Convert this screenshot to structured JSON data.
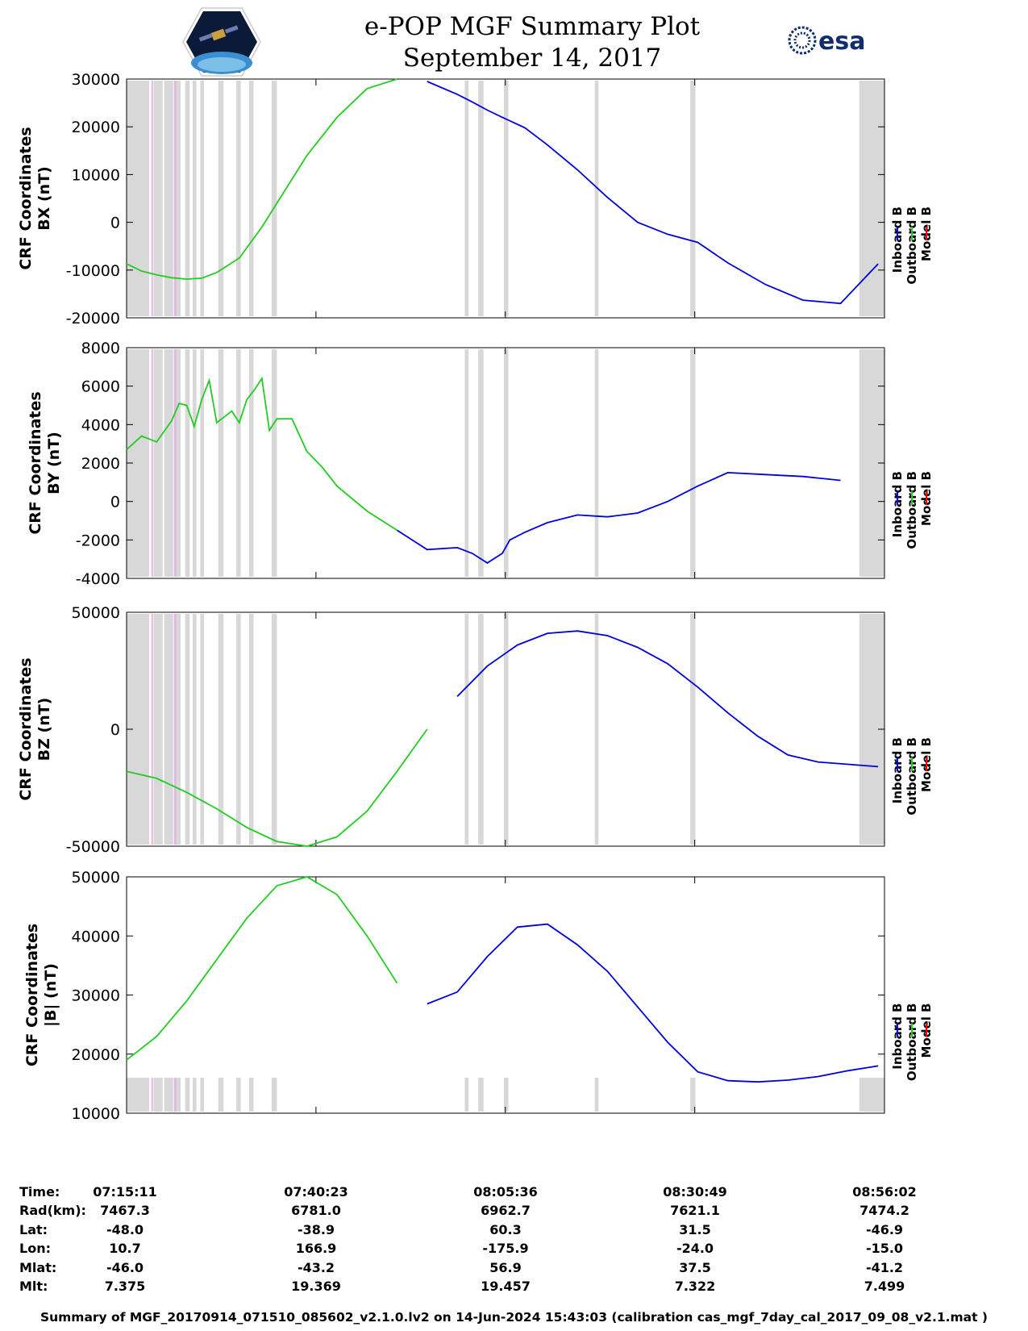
{
  "title": "e-POP MGF Summary Plot",
  "date": "September 14, 2017",
  "logos": {
    "left": "cassiope-satellite-logo",
    "right": "esa-logo",
    "right_text": "esa"
  },
  "legend": {
    "labels": [
      "Inboard B",
      "Outboard B",
      "Model B"
    ],
    "colors": [
      "#0000ee",
      "#22cc22",
      "#ee0000"
    ]
  },
  "colors": {
    "inboard": "#0000dd",
    "outboard": "#22cc22",
    "model": "#ee0000",
    "gap_gray": "#d8d8d8",
    "gap_pink": "#e2b6e2"
  },
  "chart_data": [
    {
      "type": "line",
      "title": "",
      "ylabel": [
        "CRF Coordinates",
        "BX (nT)"
      ],
      "ylim": [
        -20000,
        30000
      ],
      "yticks": [
        -20000,
        -10000,
        0,
        10000,
        20000,
        30000
      ],
      "x_minutes_from_start": [
        0,
        2,
        4,
        6,
        8,
        10,
        12,
        15,
        18,
        21,
        24,
        28,
        32,
        36,
        40,
        44,
        46,
        48,
        50,
        53,
        56,
        60,
        64,
        68,
        72,
        76,
        80,
        85,
        90,
        95,
        100
      ],
      "series": [
        {
          "name": "Outboard B",
          "segment": [
            0,
            38
          ],
          "values": [
            -8700,
            -10200,
            -11000,
            -11600,
            -11900,
            -11700,
            -10500,
            -7500,
            -1000,
            6500,
            14000,
            22000,
            28000,
            30000,
            29500,
            26800,
            25200,
            23500,
            22000,
            19800,
            16200,
            11000,
            5200,
            0,
            -2500,
            -4200,
            -8500,
            -13000,
            -16300,
            -17000,
            -16000
          ]
        },
        {
          "name": "Inboard B",
          "segment": [
            38,
            100
          ],
          "values": [
            -8700,
            -10200,
            -11000,
            -11600,
            -11900,
            -11700,
            -10500,
            -7500,
            -1000,
            6500,
            14000,
            22000,
            28000,
            30000,
            29500,
            26800,
            25200,
            23500,
            22000,
            19800,
            16200,
            11000,
            5200,
            0,
            -2500,
            -4200,
            -8500,
            -13000,
            -16300,
            -17000,
            -8700
          ]
        }
      ]
    },
    {
      "type": "line",
      "title": "",
      "ylabel": [
        "CRF Coordinates",
        "BY (nT)"
      ],
      "ylim": [
        -4000,
        8000
      ],
      "yticks": [
        -4000,
        -2000,
        0,
        2000,
        4000,
        6000,
        8000
      ],
      "x_minutes_from_start": [
        0,
        2,
        4,
        6,
        7,
        8,
        9,
        10,
        11,
        12,
        13,
        14,
        15,
        16,
        17,
        18,
        19,
        20,
        22,
        24,
        26,
        28,
        32,
        36,
        40,
        44,
        46,
        48,
        50,
        51,
        53,
        56,
        60,
        64,
        68,
        72,
        76,
        80,
        85,
        90,
        95,
        100
      ],
      "series": [
        {
          "name": "Outboard B",
          "segment": [
            0,
            36
          ],
          "values": [
            2700,
            3400,
            3100,
            4200,
            5100,
            5000,
            3900,
            5300,
            6300,
            4100,
            4400,
            4700,
            4100,
            5300,
            5800,
            6400,
            3700,
            4300,
            4300,
            2600,
            1800,
            800,
            -500,
            -1500,
            -2500,
            -2400,
            -2700,
            -3200,
            -2700,
            -2000,
            -1600,
            -1100,
            -700,
            -800,
            -600,
            0,
            800,
            1500,
            1400,
            1300,
            1000
          ]
        },
        {
          "name": "Inboard B",
          "segment": [
            36,
            100
          ],
          "values": [
            2700,
            3400,
            3100,
            4200,
            5100,
            5000,
            3900,
            5300,
            6300,
            4100,
            4400,
            4700,
            4100,
            5300,
            5800,
            6400,
            3700,
            4300,
            4300,
            2600,
            1800,
            800,
            -500,
            -1500,
            -2500,
            -2400,
            -2700,
            -3200,
            -2700,
            -2000,
            -1600,
            -1100,
            -700,
            -800,
            -600,
            0,
            800,
            1500,
            1400,
            1300,
            1100
          ]
        },
        {
          "name": "Model B",
          "segment": [
            0,
            100
          ],
          "note": "nearly coincident with measured field"
        }
      ]
    },
    {
      "type": "line",
      "title": "",
      "ylabel": [
        "CRF Coordinates",
        "BZ (nT)"
      ],
      "ylim": [
        -50000,
        50000
      ],
      "yticks": [
        -50000,
        0,
        50000
      ],
      "x_minutes_from_start": [
        0,
        4,
        8,
        12,
        16,
        20,
        24,
        28,
        32,
        36,
        40,
        44,
        48,
        52,
        56,
        60,
        64,
        68,
        72,
        76,
        80,
        84,
        88,
        92,
        96,
        100
      ],
      "series": [
        {
          "name": "Outboard B",
          "segment": [
            0,
            42
          ],
          "values": [
            -18000,
            -21000,
            -27000,
            -34000,
            -42000,
            -48000,
            -50000,
            -46000,
            -35000,
            -18000,
            0,
            14000,
            27000,
            36000,
            41000,
            42000,
            40000,
            35000,
            28000,
            18000,
            7000,
            -3000,
            -11000,
            -14000,
            -15000,
            -16000
          ]
        },
        {
          "name": "Inboard B",
          "segment": [
            42,
            100
          ],
          "values": [
            -18000,
            -21000,
            -27000,
            -34000,
            -42000,
            -48000,
            -50000,
            -46000,
            -35000,
            -18000,
            0,
            14000,
            27000,
            36000,
            41000,
            42000,
            40000,
            35000,
            28000,
            18000,
            7000,
            -3000,
            -11000,
            -14000,
            -15000,
            -16000
          ]
        }
      ]
    },
    {
      "type": "line",
      "title": "",
      "ylabel": [
        "CRF Coordinates",
        "|B| (nT)"
      ],
      "ylim": [
        10000,
        50000
      ],
      "yticks": [
        10000,
        20000,
        30000,
        40000,
        50000
      ],
      "x_minutes_from_start": [
        0,
        4,
        8,
        12,
        16,
        20,
        24,
        28,
        32,
        36,
        40,
        44,
        48,
        52,
        56,
        60,
        64,
        68,
        72,
        76,
        80,
        84,
        88,
        92,
        96,
        100
      ],
      "series": [
        {
          "name": "Outboard B",
          "segment": [
            0,
            39
          ],
          "values": [
            19000,
            23000,
            29000,
            36000,
            43000,
            48500,
            50000,
            47000,
            40000,
            32000,
            28500,
            30500,
            36500,
            41500,
            42000,
            38500,
            34000,
            28000,
            22000,
            17000,
            15500,
            15300,
            15600,
            16200,
            17200,
            18000
          ]
        },
        {
          "name": "Inboard B",
          "segment": [
            39,
            100
          ],
          "values": [
            19000,
            23000,
            29000,
            36000,
            43000,
            48500,
            50000,
            47000,
            40000,
            32000,
            28500,
            30500,
            36500,
            41500,
            42000,
            38500,
            34000,
            28000,
            22000,
            17000,
            15500,
            15300,
            15600,
            16200,
            17200,
            18000
          ]
        }
      ]
    }
  ],
  "x_axis": {
    "start": "07:15:11",
    "end": "08:56:02",
    "tick_positions_min": [
      0,
      25.2,
      50.4,
      75.6,
      100.85
    ]
  },
  "info_rows": [
    {
      "label": "Time:",
      "values": [
        "07:15:11",
        "07:40:23",
        "08:05:36",
        "08:30:49",
        "08:56:02"
      ]
    },
    {
      "label": "Rad(km):",
      "values": [
        "7467.3",
        "6781.0",
        "6962.7",
        "7621.1",
        "7474.2"
      ]
    },
    {
      "label": "Lat:",
      "values": [
        "-48.0",
        "-38.9",
        "60.3",
        "31.5",
        "-46.9"
      ]
    },
    {
      "label": "Lon:",
      "values": [
        "10.7",
        "166.9",
        "-175.9",
        "-24.0",
        "-15.0"
      ]
    },
    {
      "label": "Mlat:",
      "values": [
        "-46.0",
        "-43.2",
        "56.9",
        "37.5",
        "-41.2"
      ]
    },
    {
      "label": "Mlt:",
      "values": [
        "7.375",
        "19.369",
        "19.457",
        "7.322",
        "7.499"
      ]
    }
  ],
  "gap_bands_min": [
    [
      0,
      3
    ],
    [
      3.6,
      4.8
    ],
    [
      5.0,
      6.2
    ],
    [
      6.5,
      7.2
    ],
    [
      7.8,
      8.4
    ],
    [
      8.8,
      9.3
    ],
    [
      9.8,
      10.3
    ],
    [
      12.2,
      12.9
    ],
    [
      14.6,
      15.2
    ],
    [
      16.3,
      16.9
    ],
    [
      19.3,
      20.0
    ],
    [
      45.0,
      45.5
    ],
    [
      46.8,
      47.5
    ],
    [
      50.2,
      50.8
    ],
    [
      62.3,
      62.8
    ],
    [
      75.0,
      75.7
    ],
    [
      97.5,
      100.85
    ]
  ],
  "pink_bands_min": [
    [
      3.3,
      3.5
    ],
    [
      6.3,
      6.6
    ]
  ],
  "footer": "Summary of MGF_20170914_071510_085602_v2.1.0.lv2 on 14-Jun-2024 15:43:03 (calibration cas_mgf_7day_cal_2017_09_08_v2.1.mat )"
}
